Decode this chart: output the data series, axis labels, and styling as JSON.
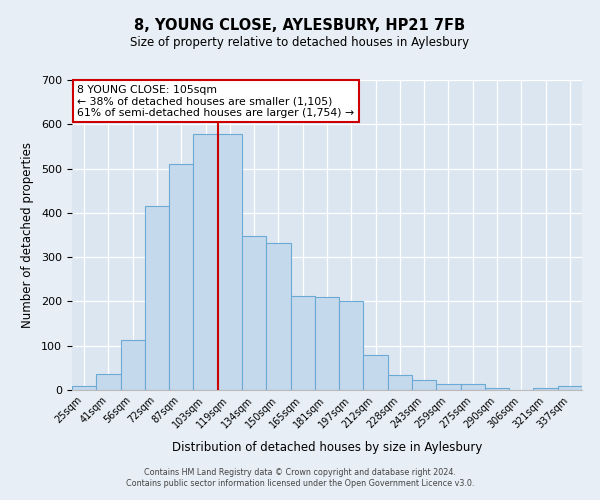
{
  "title": "8, YOUNG CLOSE, AYLESBURY, HP21 7FB",
  "subtitle": "Size of property relative to detached houses in Aylesbury",
  "xlabel": "Distribution of detached houses by size in Aylesbury",
  "ylabel": "Number of detached properties",
  "bar_labels": [
    "25sqm",
    "41sqm",
    "56sqm",
    "72sqm",
    "87sqm",
    "103sqm",
    "119sqm",
    "134sqm",
    "150sqm",
    "165sqm",
    "181sqm",
    "197sqm",
    "212sqm",
    "228sqm",
    "243sqm",
    "259sqm",
    "275sqm",
    "290sqm",
    "306sqm",
    "321sqm",
    "337sqm"
  ],
  "bar_values": [
    8,
    37,
    113,
    415,
    510,
    578,
    578,
    347,
    333,
    212,
    210,
    200,
    80,
    35,
    22,
    13,
    13,
    5,
    0,
    5,
    8
  ],
  "bar_color": "#c5d9ed",
  "bar_edge_color": "#6aaad4",
  "background_color": "#e8eef5",
  "plot_bg_color": "#dce6f0",
  "ylim": [
    0,
    700
  ],
  "yticks": [
    0,
    100,
    200,
    300,
    400,
    500,
    600,
    700
  ],
  "vline_x_index": 5.5,
  "vline_color": "#cc0000",
  "annotation_title": "8 YOUNG CLOSE: 105sqm",
  "annotation_line1": "← 38% of detached houses are smaller (1,105)",
  "annotation_line2": "61% of semi-detached houses are larger (1,754) →",
  "annotation_box_color": "#ffffff",
  "annotation_box_edge": "#cc0000",
  "footer1": "Contains HM Land Registry data © Crown copyright and database right 2024.",
  "footer2": "Contains public sector information licensed under the Open Government Licence v3.0."
}
